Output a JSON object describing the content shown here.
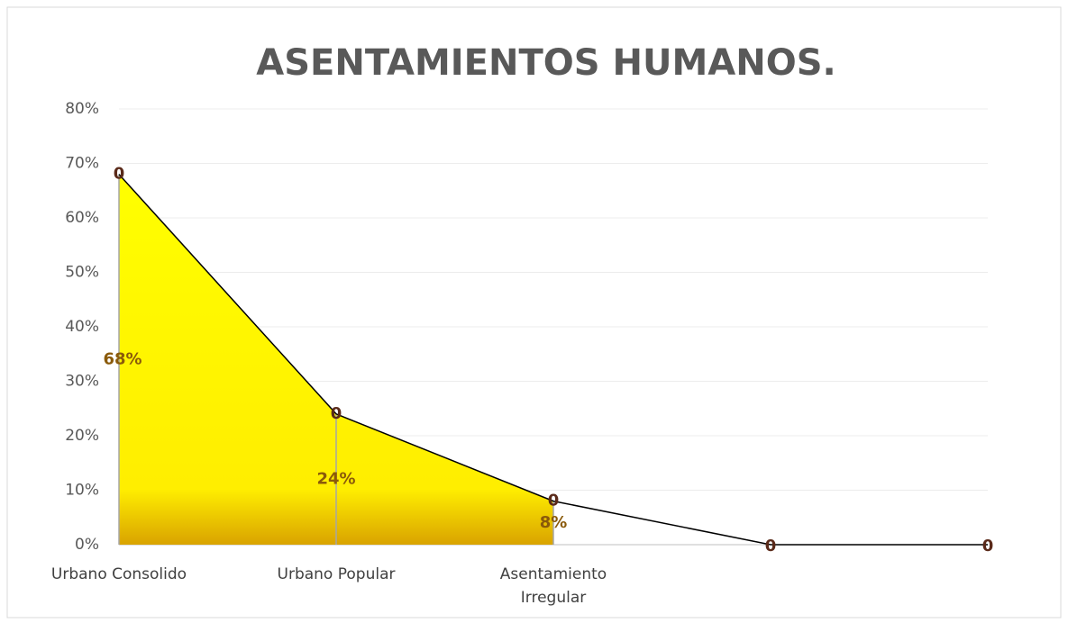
{
  "chart_data": {
    "type": "area",
    "title": "ASENTAMIENTOS HUMANOS.",
    "categories": [
      "Urbano Consolido",
      "Urbano Popular",
      "Asentamiento Irregular",
      null,
      null
    ],
    "series": [
      {
        "type": "area",
        "color": "#ffff00",
        "values": [
          68,
          24,
          8,
          null,
          null
        ],
        "value_labels": [
          "68%",
          "24%",
          "8%",
          null,
          null
        ]
      },
      {
        "type": "line",
        "color": "#000000",
        "values": [
          68,
          24,
          8,
          0,
          0
        ]
      }
    ],
    "annotations": [
      "0",
      "0",
      "0",
      "0",
      "0"
    ],
    "ylim": [
      0,
      80
    ],
    "yticks": [
      {
        "value": 0,
        "label": "0%"
      },
      {
        "value": 10,
        "label": "10%"
      },
      {
        "value": 20,
        "label": "20%"
      },
      {
        "value": 30,
        "label": "30%"
      },
      {
        "value": 40,
        "label": "40%"
      },
      {
        "value": 50,
        "label": "50%"
      },
      {
        "value": 60,
        "label": "60%"
      },
      {
        "value": 70,
        "label": "70%"
      },
      {
        "value": 80,
        "label": "80%"
      }
    ],
    "grid": true
  }
}
